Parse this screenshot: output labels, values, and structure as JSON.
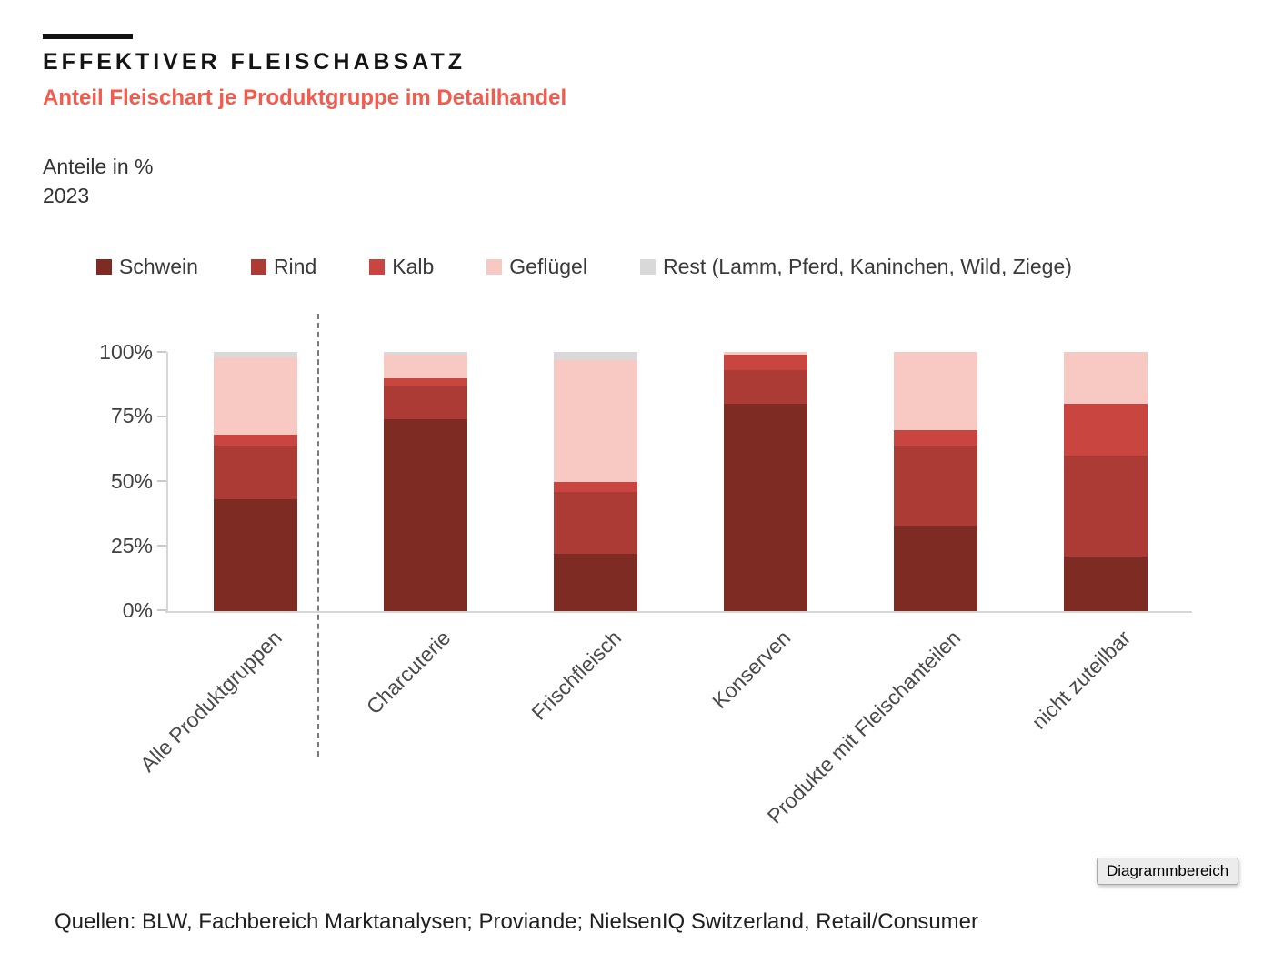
{
  "header": {
    "title": "EFFEKTIVER FLEISCHABSATZ",
    "subtitle": "Anteil Fleischart je Produktgruppe im Detailhandel",
    "unit_label": "Anteile in %",
    "year": "2023"
  },
  "chart_data": {
    "type": "bar",
    "stacked": true,
    "unit": "%",
    "title": "Anteil Fleischart je Produktgruppe im Detailhandel",
    "xlabel": "",
    "ylabel": "Anteile in %",
    "ylim": [
      0,
      100
    ],
    "grid": false,
    "legend_position": "top",
    "y_ticks": [
      "0%",
      "25%",
      "50%",
      "75%",
      "100%"
    ],
    "categories": [
      "Alle Produktgruppen",
      "Charcuterie",
      "Frischfleisch",
      "Konserven",
      "Produkte mit Fleischanteilen",
      "nicht zuteilbar"
    ],
    "series": [
      {
        "name": "Schwein",
        "color": "#7E2B24",
        "values": [
          43,
          74,
          22,
          80,
          33,
          21
        ]
      },
      {
        "name": "Rind",
        "color": "#AC3B35",
        "values": [
          21,
          13,
          24,
          13,
          31,
          39
        ]
      },
      {
        "name": "Kalb",
        "color": "#C9453F",
        "values": [
          4,
          3,
          4,
          6,
          6,
          20
        ]
      },
      {
        "name": "Geflügel",
        "color": "#F8C8C3",
        "values": [
          30,
          9,
          47,
          1,
          30,
          20
        ]
      },
      {
        "name": "Rest (Lamm, Pferd, Kaninchen, Wild, Ziege)",
        "color": "#D9D9D9",
        "values": [
          2,
          1,
          3,
          0,
          0,
          0
        ]
      }
    ],
    "separator_after_category": "Alle Produktgruppen"
  },
  "footer": {
    "sources": "Quellen: BLW, Fachbereich Marktanalysen; Proviande; NielsenIQ Switzerland, Retail/Consumer"
  },
  "tooltip": {
    "label": "Diagrammbereich"
  },
  "colors": {
    "subtitle_accent": "#F25B4D",
    "axis_line": "#D6D6D6",
    "tick_label": "#404040",
    "separator_line": "#7A7A7A"
  }
}
